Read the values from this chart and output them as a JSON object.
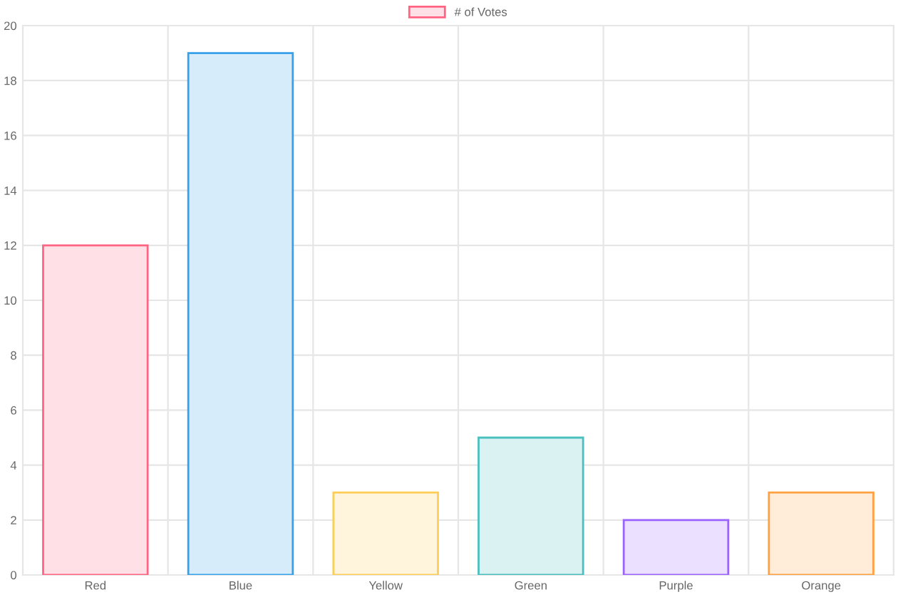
{
  "chart_data": {
    "type": "bar",
    "categories": [
      "Red",
      "Blue",
      "Yellow",
      "Green",
      "Purple",
      "Orange"
    ],
    "series": [
      {
        "name": "# of Votes",
        "values": [
          12,
          19,
          3,
          5,
          2,
          3
        ],
        "colors": [
          "#ffe0e6",
          "#d7ecfb",
          "#fff5dd",
          "#dbf2f2",
          "#ebe0ff",
          "#ffecd9"
        ]
      }
    ],
    "ylim": [
      0,
      20
    ],
    "yticks": [
      0,
      2,
      4,
      6,
      8,
      10,
      12,
      14,
      16,
      18,
      20
    ],
    "grid": true,
    "legend": "top"
  }
}
